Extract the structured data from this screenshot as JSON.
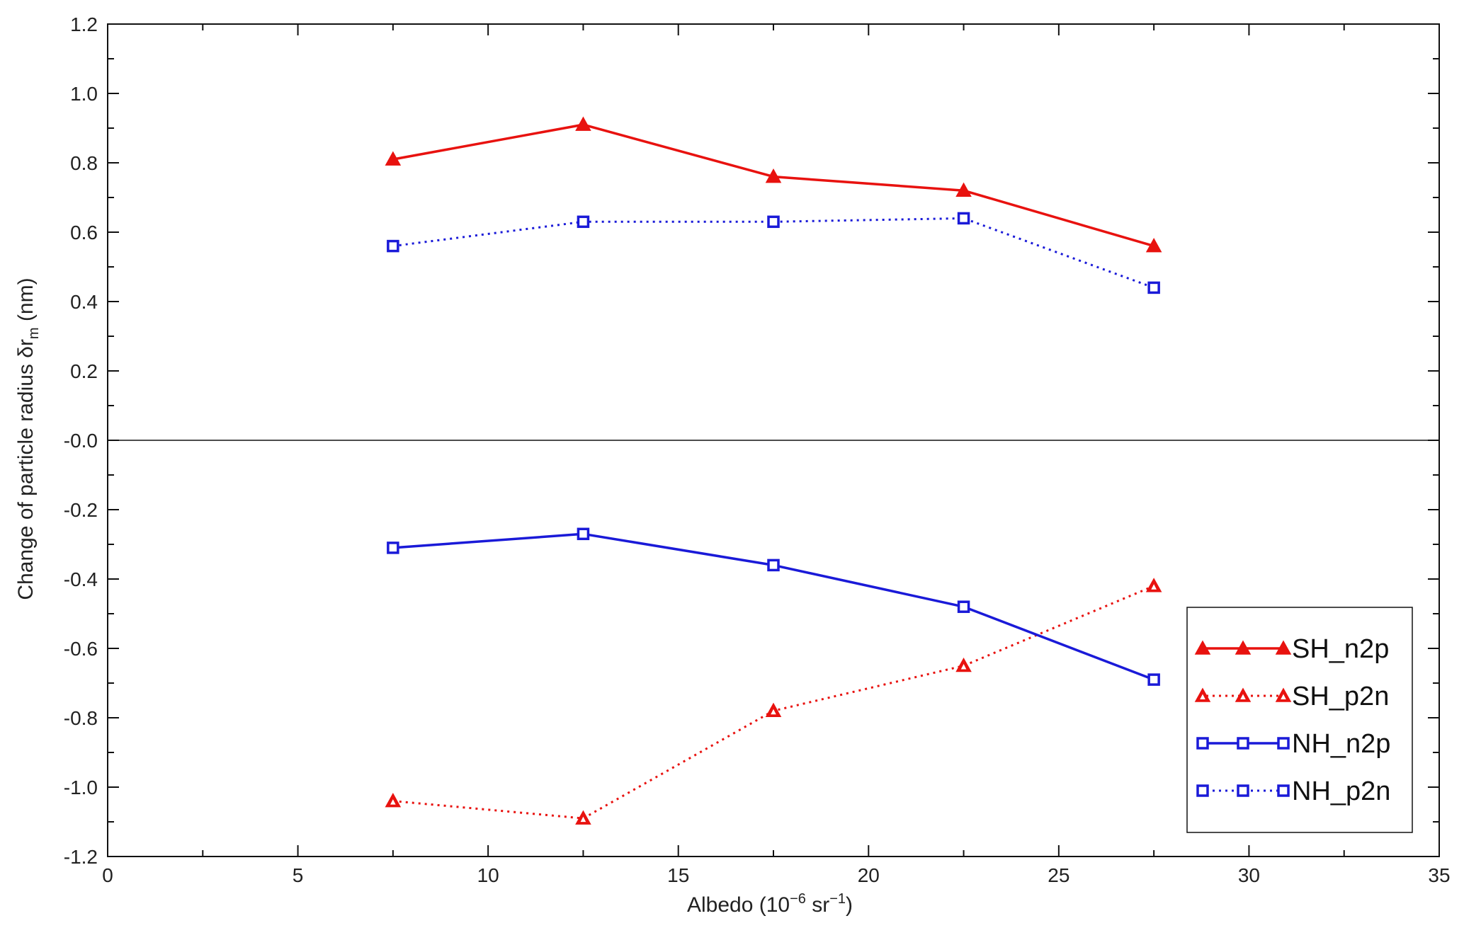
{
  "chart_data": {
    "type": "line",
    "xlabel": {
      "base": "Albedo (10",
      "exp1": "−6",
      "mid": " sr",
      "exp2": "−1",
      "end": ")"
    },
    "ylabel": {
      "base": "Change of particle radius δr",
      "sub": "m",
      "end": " (nm)"
    },
    "xlim": [
      0,
      35
    ],
    "ylim": [
      -1.2,
      1.2
    ],
    "xticks": [
      "0",
      "5",
      "10",
      "15",
      "20",
      "25",
      "30",
      "35"
    ],
    "yticks": [
      "-1.2",
      "-1.0",
      "-0.8",
      "-0.6",
      "-0.4",
      "-0.2",
      "-0.0",
      "0.2",
      "0.4",
      "0.6",
      "0.8",
      "1.0",
      "1.2"
    ],
    "zero_line": true,
    "grid": false,
    "legend_position": "lower-right",
    "x": [
      7.5,
      12.5,
      17.5,
      22.5,
      27.5
    ],
    "series": [
      {
        "name": "SH_n2p",
        "values": [
          0.81,
          0.91,
          0.76,
          0.72,
          0.56
        ],
        "color": "#e8120f",
        "line": "solid",
        "marker": "filled-triangle"
      },
      {
        "name": "SH_p2n",
        "values": [
          -1.04,
          -1.09,
          -0.78,
          -0.65,
          -0.42
        ],
        "color": "#e8120f",
        "line": "dotted",
        "marker": "open-triangle"
      },
      {
        "name": "NH_n2p",
        "values": [
          -0.31,
          -0.27,
          -0.36,
          -0.48,
          -0.69
        ],
        "color": "#1a1ad8",
        "line": "solid",
        "marker": "open-square"
      },
      {
        "name": "NH_p2n",
        "values": [
          0.56,
          0.63,
          0.63,
          0.64,
          0.44
        ],
        "color": "#1a1ad8",
        "line": "dotted",
        "marker": "open-square"
      }
    ]
  }
}
